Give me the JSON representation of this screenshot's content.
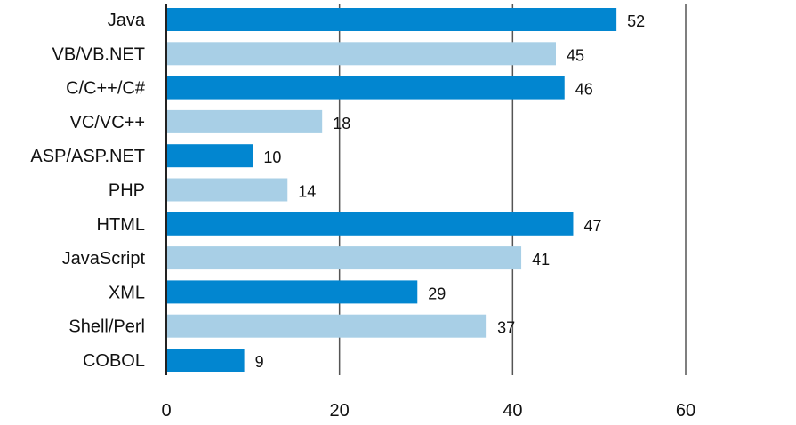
{
  "chart_data": {
    "type": "bar",
    "orientation": "horizontal",
    "title": "",
    "xlabel": "",
    "ylabel": "",
    "categories": [
      "Java",
      "VB/VB.NET",
      "C/C++/C#",
      "VC/VC++",
      "ASP/ASP.NET",
      "PHP",
      "HTML",
      "JavaScript",
      "XML",
      "Shell/Perl",
      "COBOL"
    ],
    "values": [
      52,
      45,
      46,
      18,
      10,
      14,
      47,
      41,
      29,
      37,
      9
    ],
    "xlim": [
      0,
      60
    ],
    "xticks": [
      0,
      20,
      40,
      60
    ],
    "grid": true,
    "legend": "none",
    "colors": {
      "dark_bar": "#0286d0",
      "light_bar": "#a8cfe6"
    },
    "bar_color_pattern": [
      "dark",
      "light",
      "dark",
      "light",
      "dark",
      "light",
      "dark",
      "light",
      "dark",
      "light",
      "dark"
    ]
  }
}
